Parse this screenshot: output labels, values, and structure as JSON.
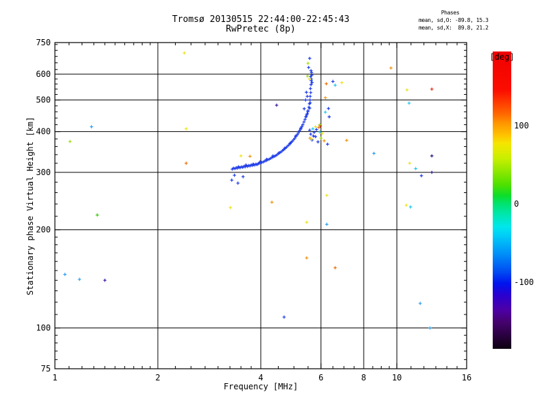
{
  "phase_stats": {
    "header": "Phases",
    "o_line": "mean, sd,O: -89.8, 15.3",
    "x_line": "mean, sd,X:  89.8, 21.2"
  },
  "chart_data": {
    "type": "scatter",
    "title": "Tromsø 20130515 22:44:00-22:45:43",
    "subtitle": "RwPretec (8p)",
    "xlabel": "Frequency [MHz]",
    "ylabel": "Stationary phase Virtual Height [km]",
    "x_scale": "log",
    "y_scale": "log",
    "xlim": [
      1,
      16
    ],
    "ylim": [
      75,
      750
    ],
    "x_major_ticks": [
      1,
      2,
      4,
      6,
      8,
      10,
      16
    ],
    "y_major_ticks": [
      75,
      100,
      200,
      300,
      400,
      500,
      600,
      750
    ],
    "x_minor_ticks": [
      1.1,
      1.2,
      1.3,
      1.4,
      1.5,
      1.6,
      1.7,
      1.8,
      1.9,
      2.25,
      2.5,
      2.75,
      3,
      3.25,
      3.5,
      3.75,
      4.5,
      5,
      5.5,
      6.5,
      7,
      7.5,
      8.5,
      9,
      9.5,
      11,
      12,
      13,
      14,
      15
    ],
    "y_minor_ticks": [
      80,
      85,
      90,
      95,
      110,
      120,
      130,
      140,
      150,
      160,
      170,
      180,
      190,
      220,
      240,
      260,
      280,
      320,
      340,
      360,
      380,
      420,
      440,
      460,
      480,
      520,
      540,
      560,
      580,
      620,
      650,
      680,
      710,
      740
    ],
    "x_grid": [
      2,
      4,
      6,
      8,
      10
    ],
    "y_grid": [
      100,
      200,
      300,
      400,
      500,
      600
    ],
    "grid": true,
    "marker": "plus",
    "marker_color_meaning": "phase [deg]",
    "colorbar": {
      "label": "[deg]",
      "ticks": [
        100,
        0,
        -100
      ],
      "range_estimate": [
        -185,
        195
      ],
      "gradient": [
        {
          "at": 0,
          "color": "#ef0000"
        },
        {
          "at": 13,
          "color": "#fb0d00"
        },
        {
          "at": 17,
          "color": "#ff3a00"
        },
        {
          "at": 21,
          "color": "#ff6700"
        },
        {
          "at": 24,
          "color": "#ff9400"
        },
        {
          "at": 28,
          "color": "#ffc100"
        },
        {
          "at": 31,
          "color": "#f5e600"
        },
        {
          "at": 36,
          "color": "#c8ef00"
        },
        {
          "at": 40,
          "color": "#92e800"
        },
        {
          "at": 45,
          "color": "#4ce000"
        },
        {
          "at": 48.5,
          "color": "#0ddd2b"
        },
        {
          "at": 51.3,
          "color": "#00e371"
        },
        {
          "at": 55,
          "color": "#00e7b2"
        },
        {
          "at": 59,
          "color": "#00e6ec"
        },
        {
          "at": 62,
          "color": "#00ccf8"
        },
        {
          "at": 68,
          "color": "#0090f8"
        },
        {
          "at": 74,
          "color": "#004cf2"
        },
        {
          "at": 78,
          "color": "#0014ee"
        },
        {
          "at": 82,
          "color": "#2a00cf"
        },
        {
          "at": 87,
          "color": "#4d00a5"
        },
        {
          "at": 91,
          "color": "#45026e"
        },
        {
          "at": 96,
          "color": "#27013a"
        },
        {
          "at": 100,
          "color": "#0d0010"
        }
      ]
    },
    "series": [
      {
        "name": "o-mode-trace",
        "color": "#1e3ce8",
        "points": [
          [
            3.3,
            307
          ],
          [
            3.33,
            309
          ],
          [
            3.36,
            308
          ],
          [
            3.39,
            310
          ],
          [
            3.42,
            309
          ],
          [
            3.45,
            311
          ],
          [
            3.48,
            310
          ],
          [
            3.51,
            312
          ],
          [
            3.54,
            311
          ],
          [
            3.57,
            313
          ],
          [
            3.6,
            312
          ],
          [
            3.63,
            314
          ],
          [
            3.66,
            313
          ],
          [
            3.69,
            315
          ],
          [
            3.72,
            314
          ],
          [
            3.75,
            316
          ],
          [
            3.78,
            315
          ],
          [
            3.81,
            317
          ],
          [
            3.84,
            316
          ],
          [
            3.87,
            318
          ],
          [
            3.9,
            317
          ],
          [
            3.93,
            319
          ],
          [
            3.96,
            320
          ],
          [
            3.99,
            321
          ],
          [
            4.03,
            322
          ],
          [
            4.07,
            323
          ],
          [
            4.11,
            325
          ],
          [
            4.15,
            326
          ],
          [
            4.19,
            328
          ],
          [
            4.23,
            329
          ],
          [
            4.27,
            331
          ],
          [
            4.31,
            333
          ],
          [
            4.35,
            335
          ],
          [
            4.39,
            336
          ],
          [
            4.43,
            338
          ],
          [
            4.47,
            340
          ],
          [
            4.51,
            343
          ],
          [
            4.55,
            345
          ],
          [
            4.59,
            347
          ],
          [
            4.63,
            350
          ],
          [
            4.67,
            352
          ],
          [
            4.71,
            355
          ],
          [
            4.75,
            358
          ],
          [
            4.79,
            361
          ],
          [
            4.83,
            364
          ],
          [
            4.87,
            367
          ],
          [
            4.91,
            371
          ],
          [
            4.95,
            374
          ],
          [
            4.99,
            378
          ],
          [
            5.03,
            382
          ],
          [
            5.07,
            387
          ],
          [
            5.11,
            391
          ],
          [
            5.15,
            396
          ],
          [
            5.19,
            402
          ],
          [
            5.23,
            407
          ],
          [
            5.27,
            414
          ],
          [
            5.31,
            420
          ],
          [
            5.35,
            428
          ],
          [
            5.39,
            436
          ],
          [
            5.43,
            445
          ],
          [
            5.47,
            454
          ],
          [
            5.5,
            464
          ],
          [
            5.53,
            475
          ],
          [
            5.55,
            487
          ],
          [
            5.57,
            500
          ],
          [
            5.58,
            513
          ],
          [
            5.6,
            527
          ],
          [
            5.59,
            542
          ],
          [
            5.61,
            557
          ],
          [
            5.62,
            573
          ],
          [
            5.6,
            590
          ],
          [
            5.63,
            607
          ],
          [
            5.61,
            615
          ],
          [
            5.64,
            596
          ],
          [
            5.62,
            580
          ],
          [
            5.65,
            565
          ],
          [
            5.52,
            629
          ],
          [
            5.5,
            648,
            "#a0dc14"
          ],
          [
            5.56,
            671
          ],
          [
            3.44,
            312
          ],
          [
            3.62,
            316
          ],
          [
            3.8,
            318
          ],
          [
            3.98,
            323
          ],
          [
            4.16,
            329
          ],
          [
            4.34,
            337
          ],
          [
            4.52,
            344
          ],
          [
            4.7,
            356
          ],
          [
            4.88,
            369
          ],
          [
            5.06,
            388
          ],
          [
            5.24,
            410
          ],
          [
            5.42,
            444
          ],
          [
            5.49,
            460
          ],
          [
            5.56,
            472
          ],
          [
            5.58,
            490
          ],
          [
            5.45,
            450
          ],
          [
            3.35,
            294
          ],
          [
            3.55,
            291
          ],
          [
            3.43,
            278
          ],
          [
            3.29,
            284
          ]
        ]
      },
      {
        "name": "x-mode-and-spread",
        "color": "#1e3ce8",
        "points": [
          [
            5.78,
            414,
            "#ece41e"
          ],
          [
            5.56,
            404
          ],
          [
            5.82,
            406
          ],
          [
            5.6,
            393
          ],
          [
            5.95,
            399,
            "#1ec8f0"
          ],
          [
            5.78,
            386
          ],
          [
            6.05,
            395,
            "#ece41e"
          ],
          [
            5.65,
            377
          ],
          [
            6.13,
            375,
            "#f09414"
          ],
          [
            5.88,
            372
          ],
          [
            6.27,
            366
          ],
          [
            6.0,
            382,
            "#a0dc14"
          ],
          [
            5.92,
            412,
            "#ee7008"
          ],
          [
            5.97,
            417,
            "#e42810"
          ],
          [
            5.95,
            420,
            "#a0dc14"
          ],
          [
            5.57,
            382,
            "#f09414"
          ],
          [
            5.63,
            380,
            "#ece41e"
          ],
          [
            5.7,
            388
          ],
          [
            5.73,
            398
          ],
          [
            5.68,
            408,
            "#1ec8f0"
          ],
          [
            6.22,
            561,
            "#ee7008"
          ],
          [
            6.6,
            555,
            "#1ec8f0"
          ],
          [
            6.9,
            565,
            "#ece41e"
          ],
          [
            6.5,
            570
          ],
          [
            6.18,
            508,
            "#f09414"
          ],
          [
            6.31,
            471
          ],
          [
            6.18,
            459,
            "#1ec8f0"
          ],
          [
            6.34,
            444
          ],
          [
            4.45,
            482,
            "#3c14a0"
          ],
          [
            5.44,
            528
          ],
          [
            5.47,
            513
          ],
          [
            5.41,
            500
          ],
          [
            5.36,
            470
          ],
          [
            5.55,
            580,
            "#ece41e"
          ],
          [
            5.48,
            592,
            "#a0dc14"
          ]
        ]
      },
      {
        "name": "scattered-echoes",
        "color": "#1e3ce8",
        "points": [
          [
            2.39,
            697,
            "#ece41e"
          ],
          [
            9.61,
            627,
            "#f09414"
          ],
          [
            1.28,
            414,
            "#2e9ef0"
          ],
          [
            2.42,
            408,
            "#ece41e"
          ],
          [
            1.107,
            373,
            "#a0dc14"
          ],
          [
            2.42,
            320,
            "#ee7008"
          ],
          [
            1.33,
            222,
            "#3cc814"
          ],
          [
            12.66,
            540,
            "#e42810"
          ],
          [
            10.71,
            537,
            "#ece41e"
          ],
          [
            10.86,
            489,
            "#1ec8f0"
          ],
          [
            7.13,
            376,
            "#f09414"
          ],
          [
            8.57,
            343,
            "#2e9ef0"
          ],
          [
            12.66,
            337,
            "#2a1078"
          ],
          [
            10.9,
            320,
            "#ece41e"
          ],
          [
            11.35,
            308,
            "#1ec8f0"
          ],
          [
            12.66,
            300,
            "#2a1078"
          ],
          [
            11.8,
            293
          ],
          [
            10.66,
            238,
            "#ece41e"
          ],
          [
            10.97,
            235,
            "#1ec8f0"
          ],
          [
            6.24,
            255,
            "#ece41e"
          ],
          [
            6.24,
            208,
            "#2e9ef0"
          ],
          [
            3.26,
            234,
            "#ece41e"
          ],
          [
            4.31,
            243,
            "#f09414"
          ],
          [
            5.45,
            211,
            "#ece41e"
          ],
          [
            5.45,
            164,
            "#f09414"
          ],
          [
            6.6,
            153,
            "#ee7008"
          ],
          [
            4.68,
            108
          ],
          [
            1.07,
            146,
            "#2e9ef0"
          ],
          [
            1.18,
            141,
            "#2e9ef0"
          ],
          [
            1.4,
            140,
            "#3c14a0"
          ],
          [
            11.7,
            119,
            "#2e9ef0"
          ],
          [
            12.5,
            100,
            "#2e9ef0"
          ],
          [
            3.5,
            337,
            "#ece41e"
          ],
          [
            3.72,
            336,
            "#f09414"
          ]
        ]
      }
    ]
  }
}
